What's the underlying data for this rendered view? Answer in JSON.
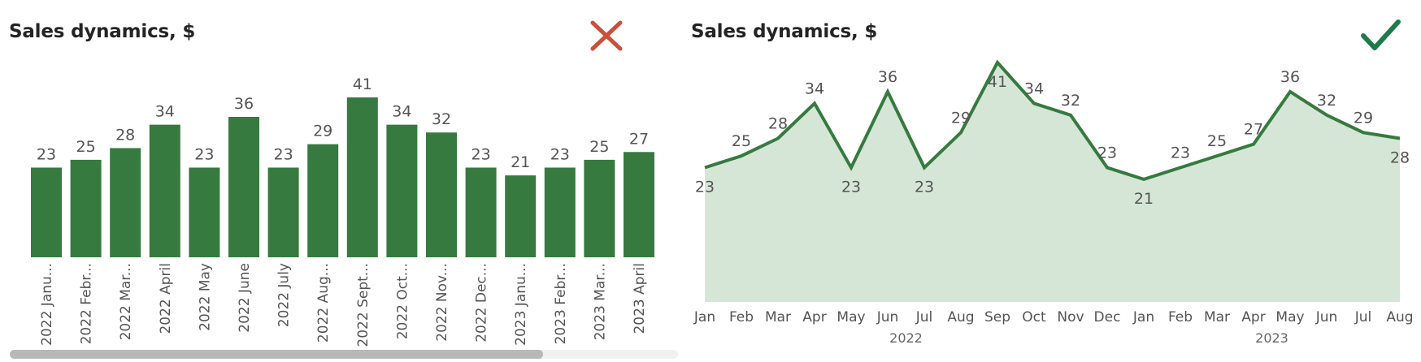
{
  "bad_panel": {
    "title": "Sales dynamics, $",
    "mark_icon": "cross-icon",
    "mark_color": "#c9503a"
  },
  "good_panel": {
    "title": "Sales dynamics, $",
    "mark_icon": "checkmark-icon",
    "mark_color": "#1f7a4c"
  },
  "chart_data": [
    {
      "type": "bar",
      "title": "Sales dynamics, $",
      "categories": [
        "2022 Janu...",
        "2022 Febr...",
        "2022 Mar...",
        "2022 April",
        "2022 May",
        "2022 June",
        "2022 July",
        "2022 Aug...",
        "2022 Sept...",
        "2022 Oct...",
        "2022 Nov...",
        "2022 Dec...",
        "2023 Janu...",
        "2023 Febr...",
        "2023 Mar...",
        "2023 April"
      ],
      "values": [
        23,
        25,
        28,
        34,
        23,
        36,
        23,
        29,
        41,
        34,
        32,
        23,
        21,
        23,
        25,
        27
      ],
      "ylim": [
        0,
        41
      ],
      "grid": false,
      "color": "#367a3f",
      "scrollbar": true
    },
    {
      "type": "area",
      "title": "Sales dynamics, $",
      "x": [
        "Jan",
        "Feb",
        "Mar",
        "Apr",
        "May",
        "Jun",
        "Jul",
        "Aug",
        "Sep",
        "Oct",
        "Nov",
        "Dec",
        "Jan",
        "Feb",
        "Mar",
        "Apr",
        "May",
        "Jun",
        "Jul",
        "Aug"
      ],
      "years": [
        {
          "label": "2022",
          "from": 0,
          "to": 11
        },
        {
          "label": "2023",
          "from": 12,
          "to": 19
        }
      ],
      "values": [
        23,
        25,
        28,
        34,
        23,
        36,
        23,
        29,
        41,
        34,
        32,
        23,
        21,
        23,
        25,
        27,
        36,
        32,
        29,
        28
      ],
      "label_positions": [
        "below",
        "above",
        "above",
        "above",
        "below",
        "above",
        "below",
        "above",
        "below",
        "above",
        "above",
        "above",
        "below",
        "above",
        "above",
        "above",
        "above",
        "above",
        "above",
        "below"
      ],
      "ylim": [
        0,
        41
      ],
      "grid": false,
      "line_color": "#367a3f",
      "fill_color": "#d5e6d7"
    }
  ]
}
